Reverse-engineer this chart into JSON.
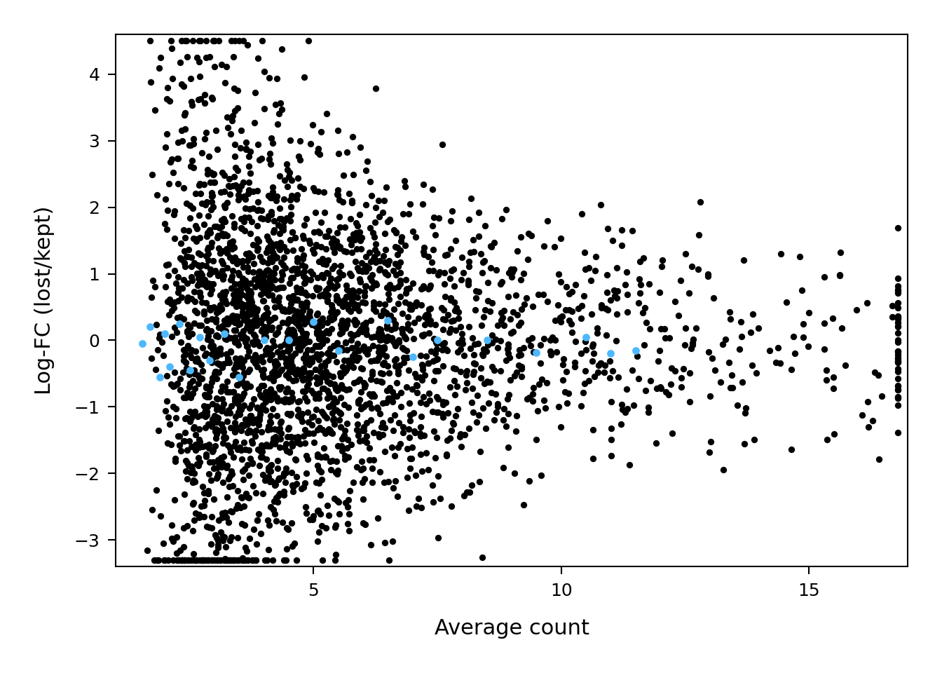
{
  "title": "",
  "xlabel": "Average count",
  "ylabel": "Log-FC (lost/kept)",
  "xlim": [
    1.0,
    17.0
  ],
  "ylim": [
    -3.4,
    4.6
  ],
  "xticks": [
    5,
    10,
    15
  ],
  "yticks": [
    -3,
    -2,
    -1,
    0,
    1,
    2,
    3,
    4
  ],
  "background_color": "#ffffff",
  "black_dot_color": "#000000",
  "blue_dot_color": "#4db8ff",
  "dot_size": 45,
  "blue_dot_size": 60,
  "seed": 42,
  "n_black": 3000,
  "blue_x": [
    1.55,
    1.7,
    1.9,
    2.0,
    2.1,
    2.3,
    2.5,
    2.7,
    2.9,
    3.2,
    3.5,
    4.0,
    4.5,
    5.0,
    5.5,
    6.5,
    7.0,
    7.5,
    8.5,
    9.5,
    10.5,
    11.0,
    11.5
  ],
  "blue_y": [
    -0.05,
    0.2,
    -0.55,
    0.1,
    -0.4,
    0.25,
    -0.45,
    0.05,
    -0.3,
    0.1,
    -0.55,
    0.0,
    0.0,
    0.28,
    -0.15,
    0.3,
    -0.25,
    0.0,
    0.0,
    -0.18,
    0.05,
    -0.2,
    -0.15
  ]
}
